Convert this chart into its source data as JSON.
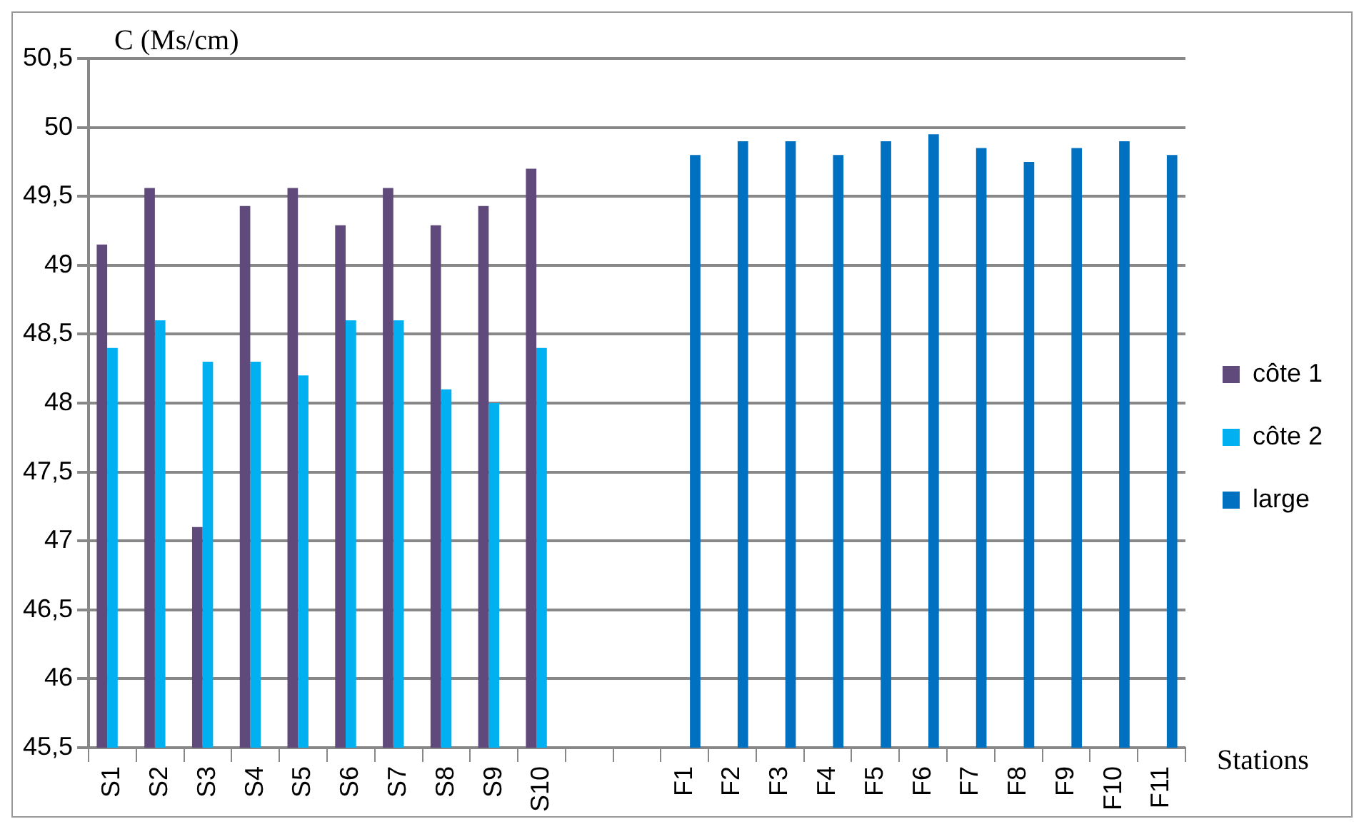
{
  "chart_data": {
    "type": "bar",
    "ylabel": "C (Ms/cm)",
    "xlabel": "Stations",
    "categories": [
      "S1",
      "S2",
      "S3",
      "S4",
      "S5",
      "S6",
      "S7",
      "S8",
      "S9",
      "S10",
      null,
      null,
      "F1",
      "F2",
      "F3",
      "F4",
      "F5",
      "F6",
      "F7",
      "F8",
      "F9",
      "F10",
      "F11"
    ],
    "series": [
      {
        "name": "côte 1",
        "color": "#604a7b",
        "values": [
          49.15,
          49.56,
          47.1,
          49.43,
          49.56,
          49.29,
          49.56,
          49.29,
          49.43,
          49.7,
          null,
          null,
          null,
          null,
          null,
          null,
          null,
          null,
          null,
          null,
          null,
          null,
          null
        ]
      },
      {
        "name": "côte 2",
        "color": "#00b0f0",
        "values": [
          48.4,
          48.6,
          48.3,
          48.3,
          48.2,
          48.6,
          48.6,
          48.1,
          48.0,
          48.4,
          null,
          null,
          null,
          null,
          null,
          null,
          null,
          null,
          null,
          null,
          null,
          null,
          null
        ]
      },
      {
        "name": "large",
        "color": "#0070c0",
        "values": [
          null,
          null,
          null,
          null,
          null,
          null,
          null,
          null,
          null,
          null,
          null,
          null,
          49.8,
          49.9,
          49.9,
          49.8,
          49.9,
          49.95,
          49.85,
          49.75,
          49.85,
          49.9,
          49.8
        ]
      }
    ],
    "ylim": [
      45.5,
      50.5
    ],
    "yticks": [
      {
        "value": 45.5,
        "label": "45,5"
      },
      {
        "value": 46,
        "label": "46"
      },
      {
        "value": 46.5,
        "label": "46,5"
      },
      {
        "value": 47,
        "label": "47"
      },
      {
        "value": 47.5,
        "label": "47,5"
      },
      {
        "value": 48,
        "label": "48"
      },
      {
        "value": 48.5,
        "label": "48,5"
      },
      {
        "value": 49,
        "label": "49"
      },
      {
        "value": 49.5,
        "label": "49,5"
      },
      {
        "value": 50,
        "label": "50"
      },
      {
        "value": 50.5,
        "label": "50,5"
      }
    ],
    "grid": "y",
    "legend": "right"
  }
}
